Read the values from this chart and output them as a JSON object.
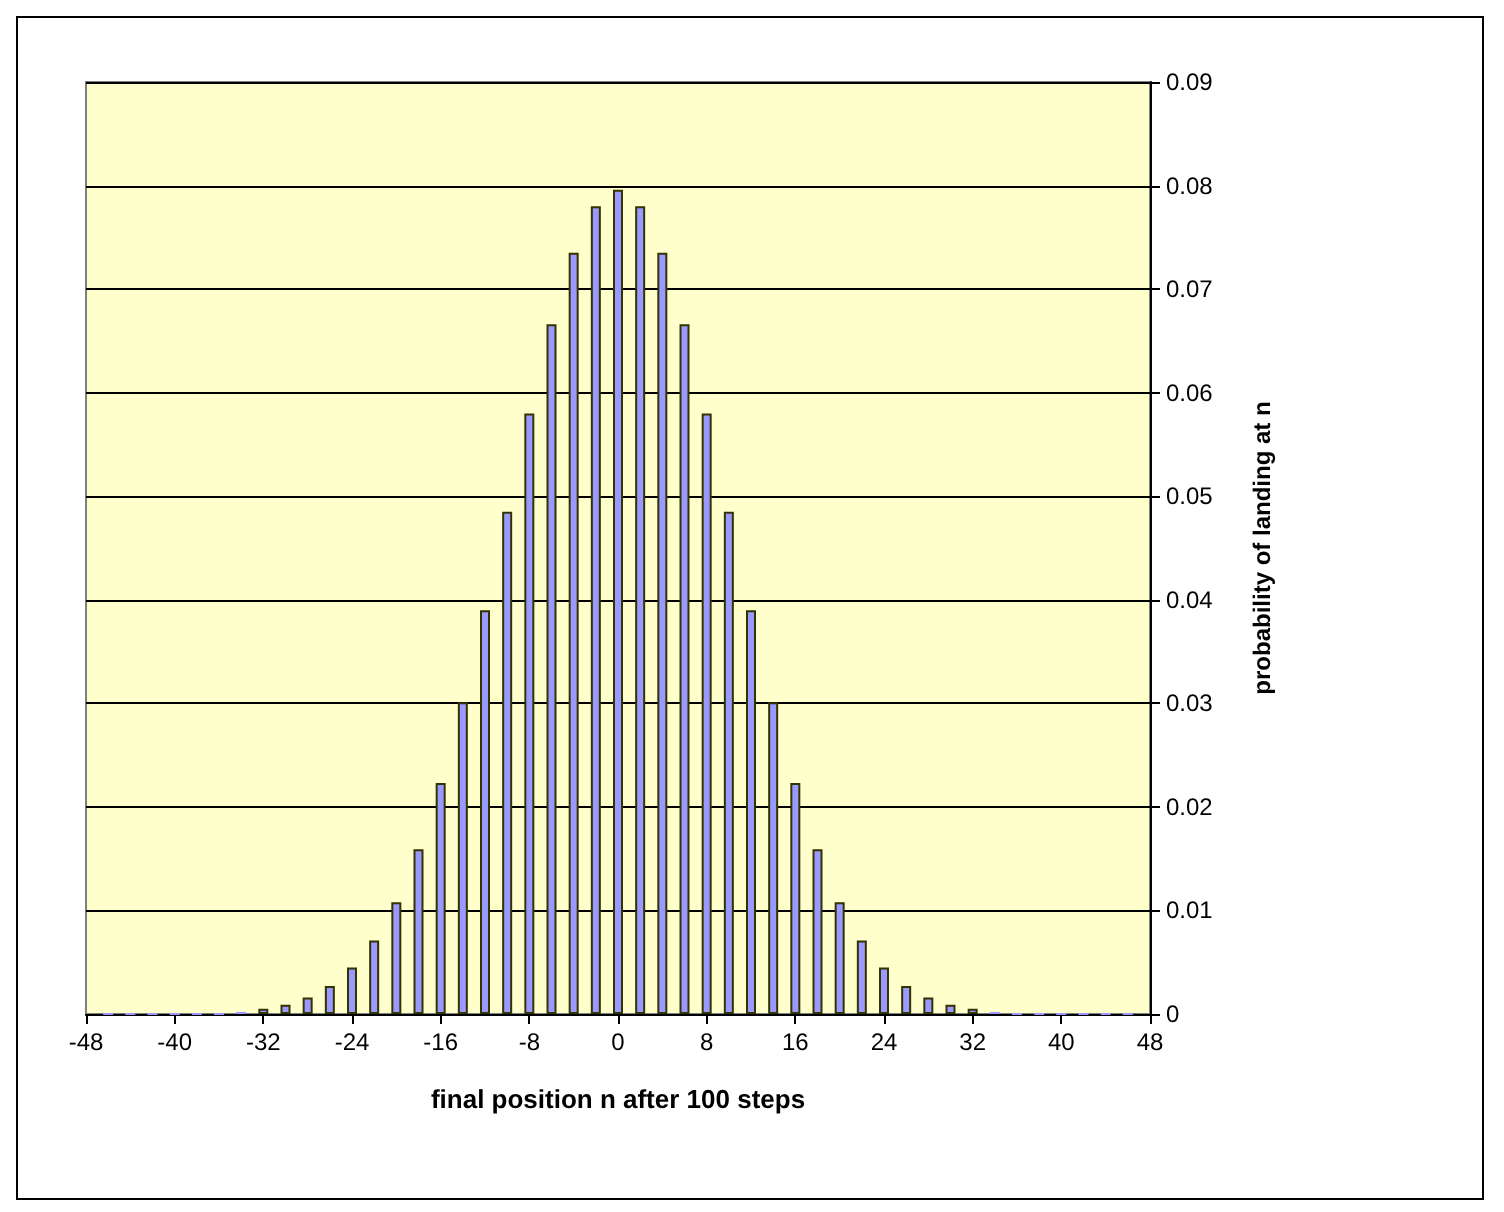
{
  "chart_data": {
    "type": "bar",
    "xlabel": "final position n after 100 steps",
    "ylabel": "probability of landing at n",
    "x": [
      -46,
      -44,
      -42,
      -40,
      -38,
      -36,
      -34,
      -32,
      -30,
      -28,
      -26,
      -24,
      -22,
      -20,
      -18,
      -16,
      -14,
      -12,
      -10,
      -8,
      -6,
      -4,
      -2,
      0,
      2,
      4,
      6,
      8,
      10,
      12,
      14,
      16,
      18,
      20,
      22,
      24,
      26,
      28,
      30,
      32,
      34,
      36,
      38,
      40,
      42,
      44,
      46
    ],
    "values": [
      0,
      0,
      0,
      0,
      0,
      0,
      0.0002,
      0.0005,
      0.0009,
      0.0016,
      0.0027,
      0.0045,
      0.0071,
      0.0108,
      0.0159,
      0.0223,
      0.0301,
      0.039,
      0.0485,
      0.058,
      0.0666,
      0.0735,
      0.078,
      0.0796,
      0.078,
      0.0735,
      0.0666,
      0.058,
      0.0485,
      0.039,
      0.0301,
      0.0223,
      0.0159,
      0.0108,
      0.0071,
      0.0045,
      0.0027,
      0.0016,
      0.0009,
      0.0005,
      0.0002,
      0,
      0,
      0,
      0,
      0,
      0
    ],
    "color": "#9999ff",
    "xlim": [
      -48,
      48
    ],
    "xticks": [
      -48,
      -40,
      -32,
      -24,
      -16,
      -8,
      0,
      8,
      16,
      24,
      32,
      40,
      48
    ],
    "ylim": [
      0,
      0.09
    ],
    "yticks": [
      0,
      0.01,
      0.02,
      0.03,
      0.04,
      0.05,
      0.06,
      0.07,
      0.08,
      0.09
    ],
    "grid": "y"
  }
}
